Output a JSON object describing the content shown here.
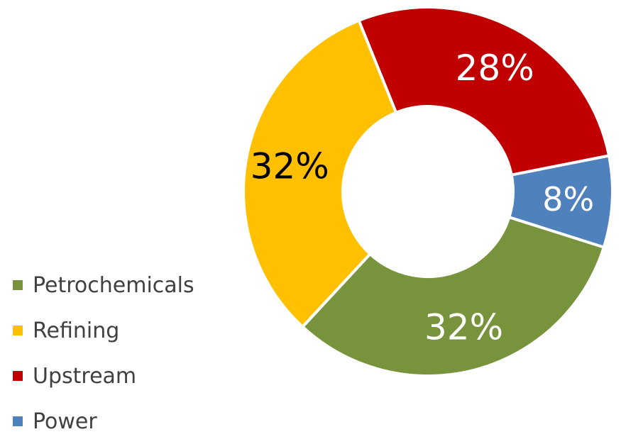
{
  "chart_data": {
    "type": "pie",
    "donut": true,
    "title": "",
    "categories": [
      "Petrochemicals",
      "Refining",
      "Upstream",
      "Power"
    ],
    "values": [
      32,
      32,
      28,
      8
    ],
    "labels": [
      "32%",
      "32%",
      "28%",
      "8%"
    ],
    "unit": "%",
    "colors": [
      "#77933C",
      "#FFC000",
      "#C00000",
      "#4F81BD"
    ],
    "label_colors": [
      "#ffffff",
      "#000000",
      "#ffffff",
      "#ffffff"
    ],
    "legend": {
      "position": "bottom-left",
      "entries": [
        "Petrochemicals",
        "Refining",
        "Upstream",
        "Power"
      ]
    }
  }
}
